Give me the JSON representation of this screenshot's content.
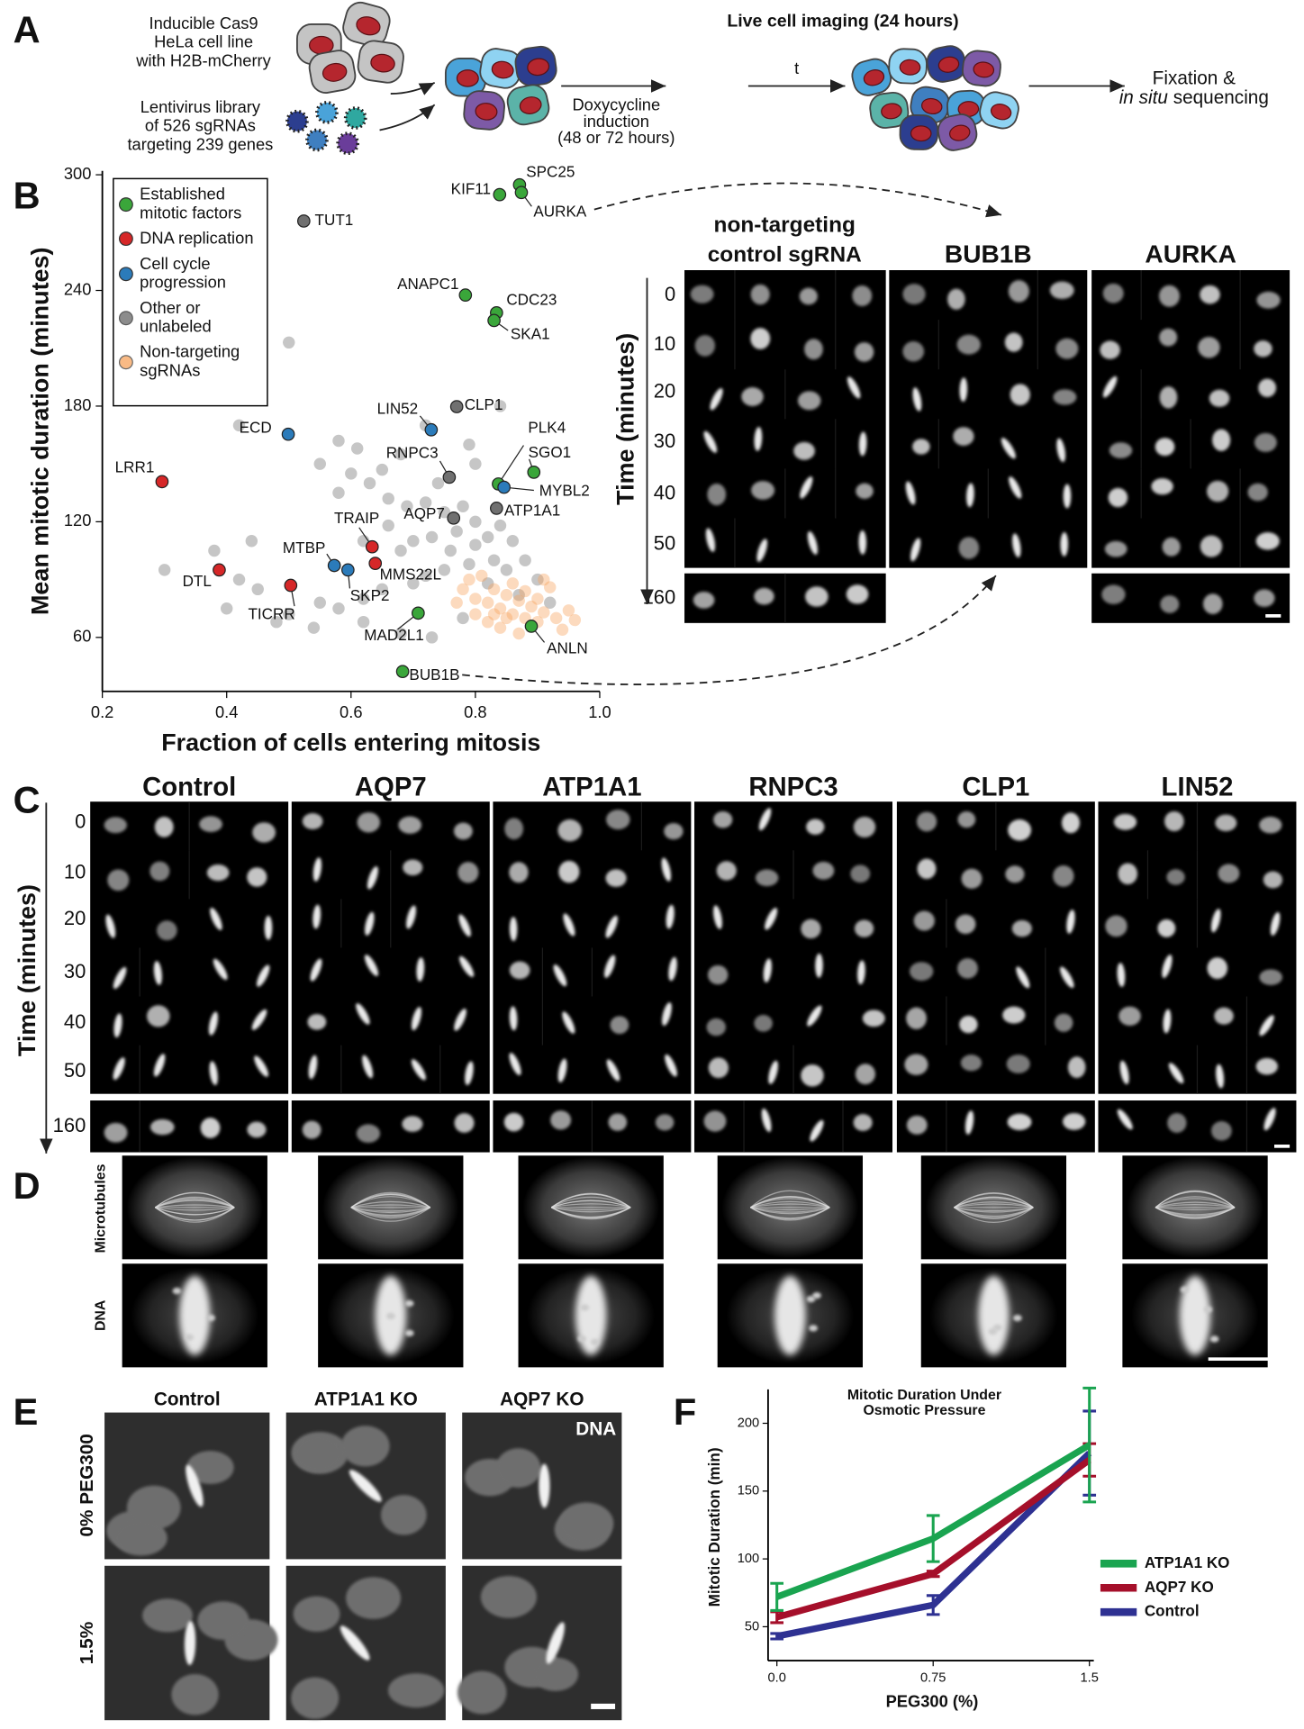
{
  "panel_labels": [
    "A",
    "B",
    "C",
    "D",
    "E",
    "F"
  ],
  "schematic": {
    "cell_line": [
      "Inducible Cas9",
      "HeLa cell line",
      "with H2B-mCherry"
    ],
    "library": [
      "Lentivirus library",
      "of 526 sgRNAs",
      "targeting 239 genes"
    ],
    "induction": [
      "Doxycycline",
      "induction",
      "(48 or 72 hours)"
    ],
    "step": "t",
    "imaging": "Live cell imaging (24 hours)",
    "readout": [
      "Fixation &",
      "in situ",
      "sequencing"
    ]
  },
  "chart_data": [
    {
      "type": "scatter",
      "x_label": "Fraction of cells entering mitosis",
      "y_label": "Mean mitotic duration (minutes)",
      "xlim": [
        0.2,
        1.0
      ],
      "ylim": [
        32,
        302
      ],
      "xticks": [
        0.2,
        0.4,
        0.6,
        0.8,
        {
          "value": 1,
          "label": "1.0"
        }
      ],
      "yticks": [
        60,
        120,
        180,
        240,
        300
      ],
      "series": [
        {
          "name": "Established mitotic factors",
          "color": "#3aa63a",
          "labels": [
            "KIF11",
            "SPC25",
            "AURKA",
            "ANAPC1",
            "CDC23",
            "SKA1",
            "SGO1",
            "PLK4",
            "MAD2L1",
            "ANLN",
            "BUB1B"
          ],
          "x": [
            0.839,
            0.871,
            0.874,
            0.784,
            0.834,
            0.83,
            0.894,
            0.837,
            0.708,
            0.89,
            0.683
          ],
          "values": [
            289.7,
            294.8,
            290.8,
            237.6,
            228.4,
            224.4,
            145.7,
            139.6,
            72.6,
            65.8,
            42.3
          ]
        },
        {
          "name": "DNA replication",
          "color": "#d62728",
          "labels": [
            "LRR1",
            "DTL",
            "TICRR",
            "TRAIP",
            "MMS22L"
          ],
          "x": [
            0.296,
            0.388,
            0.503,
            0.634,
            0.639
          ],
          "values": [
            140.8,
            95,
            87,
            107,
            98.4
          ]
        },
        {
          "name": "Cell cycle progression",
          "color": "#2b7bba",
          "labels": [
            "ECD",
            "LIN52",
            "MYBL2",
            "MTBP",
            "SKP2"
          ],
          "x": [
            0.499,
            0.729,
            0.846,
            0.573,
            0.595
          ],
          "values": [
            165.4,
            167.7,
            137.9,
            97.3,
            95
          ]
        },
        {
          "name": "Other or unlabeled",
          "color": "#707070",
          "labels": [
            "TUT1",
            "CLP1",
            "RNPC3",
            "ATP1A1",
            "AQP7",
            null,
            null,
            null,
            null,
            null,
            null,
            null,
            null,
            null,
            null,
            null,
            null,
            null,
            null,
            null,
            null,
            null,
            null,
            null,
            null,
            null,
            null,
            null,
            null,
            null,
            null,
            null,
            null,
            null,
            null,
            null,
            null,
            null,
            null,
            null,
            null,
            null,
            null,
            null,
            null,
            null,
            null,
            null,
            null,
            null,
            null,
            null,
            null,
            null,
            null,
            null,
            null,
            null,
            null,
            null,
            null,
            null,
            null,
            null,
            null
          ],
          "x": [
            0.524,
            0.77,
            0.758,
            0.834,
            0.765,
            0.5,
            0.61,
            0.42,
            0.55,
            0.6,
            0.65,
            0.63,
            0.58,
            0.66,
            0.69,
            0.72,
            0.75,
            0.78,
            0.8,
            0.77,
            0.73,
            0.7,
            0.68,
            0.76,
            0.8,
            0.82,
            0.84,
            0.86,
            0.83,
            0.79,
            0.75,
            0.72,
            0.7,
            0.65,
            0.62,
            0.58,
            0.55,
            0.5,
            0.45,
            0.42,
            0.4,
            0.48,
            0.54,
            0.62,
            0.68,
            0.73,
            0.78,
            0.82,
            0.85,
            0.88,
            0.9,
            0.87,
            0.92,
            0.74,
            0.8,
            0.72,
            0.68,
            0.79,
            0.84,
            0.58,
            0.44,
            0.38,
            0.3,
            0.66,
            0.62
          ],
          "values": [
            276,
            179.7,
            143.1,
            127,
            121.9,
            213,
            158,
            170,
            150,
            145,
            147,
            140,
            135,
            132,
            128,
            130,
            125,
            128,
            120,
            115,
            112,
            110,
            105,
            105,
            108,
            112,
            118,
            110,
            100,
            98,
            95,
            92,
            88,
            85,
            80,
            75,
            78,
            72,
            85,
            90,
            75,
            68,
            65,
            68,
            62,
            60,
            70,
            88,
            95,
            100,
            90,
            82,
            78,
            140,
            150,
            170,
            155,
            160,
            180,
            162,
            110,
            105,
            95,
            118,
            110
          ]
        },
        {
          "name": "Non-targeting sgRNAs",
          "color": "#f7a35c",
          "x": [
            0.78,
            0.8,
            0.82,
            0.84,
            0.86,
            0.88,
            0.9,
            0.83,
            0.85,
            0.87,
            0.89,
            0.91,
            0.93,
            0.8,
            0.82,
            0.84,
            0.86,
            0.88,
            0.9,
            0.92,
            0.95,
            0.94,
            0.79,
            0.81,
            0.85,
            0.87,
            0.83,
            0.91,
            0.96,
            0.77
          ],
          "values": [
            85,
            80,
            78,
            75,
            72,
            70,
            68,
            85,
            82,
            79,
            76,
            73,
            70,
            72,
            68,
            65,
            88,
            84,
            80,
            86,
            74,
            64,
            90,
            92,
            70,
            62,
            72,
            90,
            69,
            78
          ]
        }
      ]
    },
    {
      "type": "line",
      "title": "Mitotic Duration Under Osmotic Pressure",
      "x_label": "PEG300 (%)",
      "y_label": "Mitotic Duration (min)",
      "x": [
        0,
        0.75,
        1.5
      ],
      "xlim": [
        0,
        1.5
      ],
      "ylim": [
        25,
        225
      ],
      "xticks": [
        {
          "value": 0,
          "label": "0.0"
        },
        0.75,
        1.5
      ],
      "yticks": [
        50,
        100,
        150,
        200
      ],
      "series": [
        {
          "name": "ATP1A1 KO",
          "color": "#1aa450",
          "values": [
            72,
            115,
            184
          ],
          "errors": [
            10,
            17,
            42
          ]
        },
        {
          "name": "AQP7 KO",
          "color": "#a50f2a",
          "values": [
            57,
            89,
            173
          ],
          "errors": [
            4,
            2,
            12
          ]
        },
        {
          "name": "Control",
          "color": "#2e3192",
          "values": [
            43,
            66,
            178
          ],
          "errors": [
            2,
            7,
            31
          ]
        }
      ]
    }
  ],
  "montage_b": {
    "columns": [
      [
        "non-targeting",
        "control sgRNA"
      ],
      "BUB1B",
      "AURKA"
    ],
    "time_axis": "Time (minutes)",
    "times": [
      0,
      10,
      20,
      30,
      40,
      50,
      160
    ]
  },
  "montage_c": {
    "columns": [
      "Control",
      "AQP7",
      "ATP1A1",
      "RNPC3",
      "CLP1",
      "LIN52"
    ],
    "time_axis": "Time (minutes)",
    "times": [
      0,
      10,
      20,
      30,
      40,
      50,
      160
    ]
  },
  "montage_d": {
    "rows": [
      "Microtubules",
      "DNA"
    ]
  },
  "montage_e": {
    "columns": [
      "Control",
      "ATP1A1 KO",
      "AQP7 KO"
    ],
    "rows": [
      "0% PEG300",
      "1.5%"
    ],
    "channel": "DNA"
  }
}
